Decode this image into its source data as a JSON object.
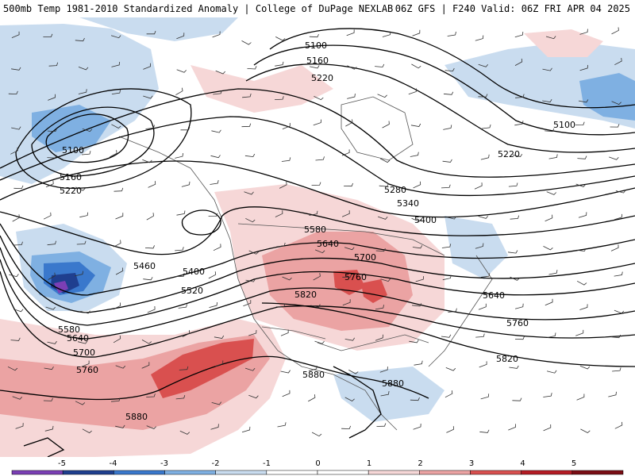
{
  "header": {
    "title_left": "500mb Temp 1981-2010 Standardized Anomaly | College of DuPage NEXLAB",
    "title_right": "06Z GFS | F240 Valid: 06Z FRI APR 04 2025"
  },
  "map": {
    "height_contours": [
      {
        "label": "5100"
      },
      {
        "label": "5160"
      },
      {
        "label": "5220"
      },
      {
        "label": "5280"
      },
      {
        "label": "5340"
      },
      {
        "label": "5400"
      },
      {
        "label": "5460"
      },
      {
        "label": "5520"
      },
      {
        "label": "5580"
      },
      {
        "label": "5640"
      },
      {
        "label": "5700"
      },
      {
        "label": "5760"
      },
      {
        "label": "5820"
      },
      {
        "label": "5880"
      }
    ],
    "contour_labels": [
      "5100",
      "5160",
      "5220",
      "5100",
      "5160",
      "5220",
      "5100",
      "5220",
      "5280",
      "5340",
      "5400",
      "5460",
      "5400",
      "5520",
      "5580",
      "5640",
      "5700",
      "5760",
      "5820",
      "5580",
      "5640",
      "5700",
      "5760",
      "5640",
      "5760",
      "5820",
      "5880",
      "5880",
      "5880"
    ],
    "anomaly_colors": {
      "neg5": "#7b3fb5",
      "neg4": "#1f3f8f",
      "neg3": "#3a78cc",
      "neg2": "#7fb0e2",
      "neg1": "#c9dcef",
      "zero": "#ffffff",
      "pos1": "#f6d7d7",
      "pos2": "#eba3a3",
      "pos3": "#d9504f",
      "pos4": "#b51c24",
      "pos5": "#7a0d14",
      "over": "#f4c430"
    }
  },
  "colorbar": {
    "ticks": [
      "-5",
      "-4",
      "-3",
      "-2",
      "-1",
      "0",
      "1",
      "2",
      "3",
      "4",
      "5"
    ],
    "colors": [
      "#7b3fb5",
      "#1f3f8f",
      "#3a78cc",
      "#7fb0e2",
      "#c9dcef",
      "#ffffff",
      "#ffffff",
      "#f6d7d7",
      "#eba3a3",
      "#d9504f",
      "#b51c24",
      "#7a0d14"
    ]
  }
}
